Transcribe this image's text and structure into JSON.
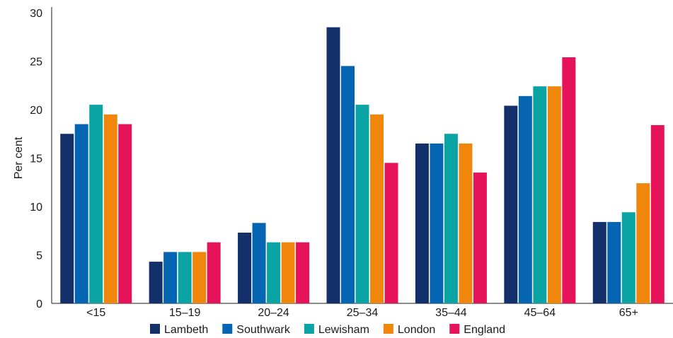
{
  "chart_data": {
    "type": "bar",
    "title": "",
    "xlabel": "",
    "ylabel": "Per cent",
    "ylim": [
      0,
      30
    ],
    "yticks": [
      0,
      5,
      10,
      15,
      20,
      25,
      30
    ],
    "grid": false,
    "legend_position": "bottom",
    "categories": [
      "<15",
      "15–19",
      "20–24",
      "25–34",
      "35–44",
      "45–64",
      "65+"
    ],
    "series": [
      {
        "name": "Lambeth",
        "color": "#14306b",
        "values": [
          17.5,
          4.3,
          7.3,
          28.5,
          16.5,
          20.4,
          8.4
        ]
      },
      {
        "name": "Southwark",
        "color": "#0565b3",
        "values": [
          18.5,
          5.3,
          8.3,
          24.5,
          16.5,
          21.4,
          8.4
        ]
      },
      {
        "name": "Lewisham",
        "color": "#0ba4a4",
        "values": [
          20.5,
          5.3,
          6.3,
          20.5,
          17.5,
          22.4,
          9.4
        ]
      },
      {
        "name": "London",
        "color": "#f0860c",
        "values": [
          19.5,
          5.3,
          6.3,
          19.5,
          16.5,
          22.4,
          12.4
        ]
      },
      {
        "name": "England",
        "color": "#e6125a",
        "values": [
          18.5,
          6.3,
          6.3,
          14.5,
          13.5,
          25.4,
          18.4
        ]
      }
    ]
  }
}
